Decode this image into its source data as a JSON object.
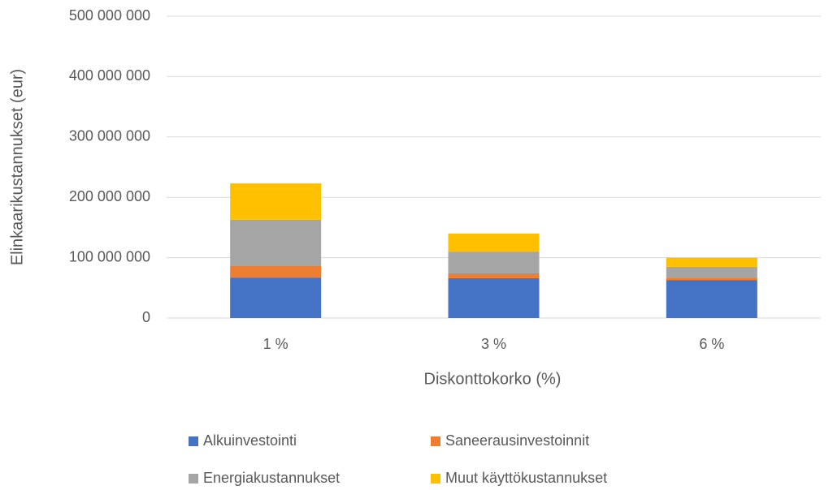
{
  "chart_data": {
    "type": "stacked_bar",
    "categories": [
      "1 %",
      "3 %",
      "6 %"
    ],
    "series": [
      {
        "name": "Alkuinvestointi",
        "color": "#4472c4",
        "values": [
          67000000,
          66000000,
          63000000
        ]
      },
      {
        "name": "Saneerausinvestoinnit",
        "color": "#ed7d31",
        "values": [
          19000000,
          8000000,
          4000000
        ]
      },
      {
        "name": "Energiakustannukset",
        "color": "#a5a5a5",
        "values": [
          77000000,
          36000000,
          18000000
        ]
      },
      {
        "name": "Muut käyttökustannukset",
        "color": "#ffc000",
        "values": [
          60000000,
          30000000,
          15000000
        ]
      }
    ],
    "ylim": [
      0,
      500000000
    ],
    "yticks": [
      0,
      {
        "value": 100000000,
        "label": "100 000 000"
      },
      {
        "value": 200000000,
        "label": "200 000 000"
      },
      {
        "value": 300000000,
        "label": "300 000 000"
      },
      {
        "value": 400000000,
        "label": "400 000 000"
      },
      {
        "value": 500000000,
        "label": "500 000 000"
      }
    ],
    "y_label": "Elinkaarikustannukset (eur)",
    "x_label": "Diskonttokorko (%)",
    "grid": true
  }
}
